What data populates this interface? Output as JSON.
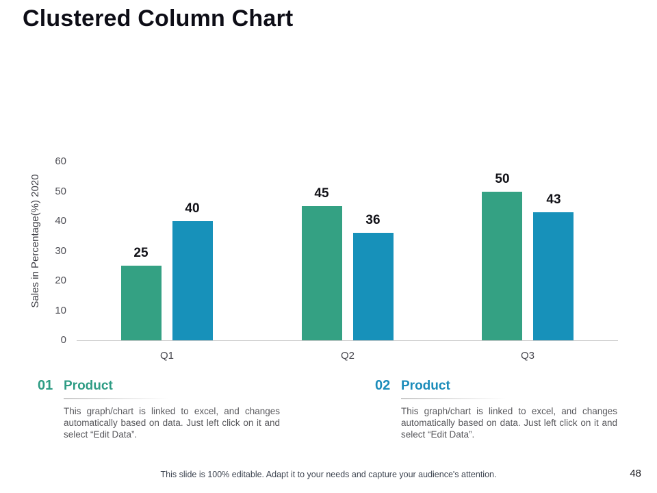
{
  "slide": {
    "title": "Clustered Column Chart",
    "footer": "This slide is 100% editable. Adapt it to your needs and capture your audience's attention.",
    "page_number": "48"
  },
  "chart_data": {
    "type": "bar",
    "title": "",
    "categories": [
      "Q1",
      "Q2",
      "Q3"
    ],
    "series": [
      {
        "name": "Product 01",
        "color": "#34A183",
        "values": [
          25,
          45,
          50
        ]
      },
      {
        "name": "Product 02",
        "color": "#1791BA",
        "values": [
          40,
          36,
          43
        ]
      }
    ],
    "xlabel": "",
    "ylabel": "Sales in Percentage(%) 2020",
    "ylim": [
      0,
      60
    ],
    "yticks": [
      0,
      10,
      20,
      30,
      40,
      50,
      60
    ],
    "grid": false,
    "legend": "none",
    "data_labels": true,
    "axis_line_color": "#c9c9c9"
  },
  "sections": [
    {
      "number": "01",
      "heading": "Product",
      "color": "#2E9C84",
      "body": "This graph/chart is linked to excel, and changes automatically based on data. Just left click on it and select “Edit Data”."
    },
    {
      "number": "02",
      "heading": "Product",
      "color": "#1B8CBA",
      "body": "This graph/chart is linked to excel, and changes automatically based on data. Just left click on it and select “Edit Data”."
    }
  ]
}
